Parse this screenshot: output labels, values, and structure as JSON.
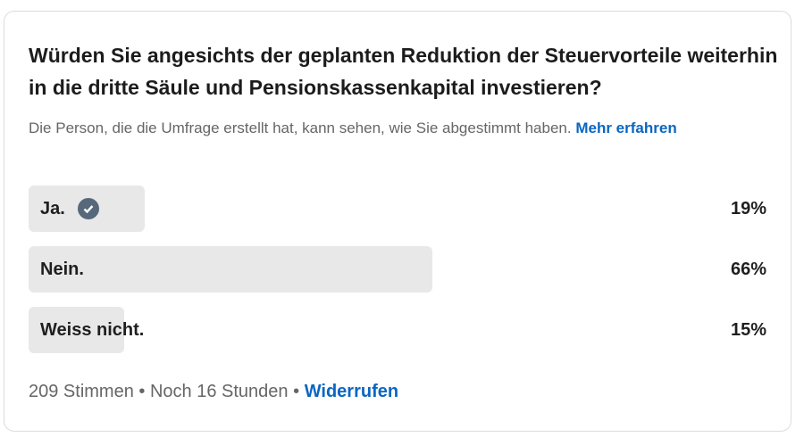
{
  "poll": {
    "question": "Würden Sie angesichts der geplanten Reduktion der Steuervorteile weiterhin in die dritte Säule und Pensionskassenkapital investieren?",
    "visibility_note": "Die Person, die die Umfrage erstellt hat, kann sehen, wie Sie abgestimmt haben.",
    "learn_more": "Mehr erfahren",
    "options": [
      {
        "label": "Ja.",
        "percent": "19%",
        "selected": true
      },
      {
        "label": "Nein.",
        "percent": "66%",
        "selected": false
      },
      {
        "label": "Weiss nicht.",
        "percent": "15%",
        "selected": false
      }
    ],
    "votes": "209 Stimmen",
    "separator": "•",
    "time_left": "Noch 16 Stunden",
    "retract": "Widerrufen"
  },
  "colors": {
    "accent": "#0a66c2",
    "bar": "#e8e8e8",
    "check": "#56687a"
  },
  "icons": {
    "selected": "check-circle-icon"
  }
}
